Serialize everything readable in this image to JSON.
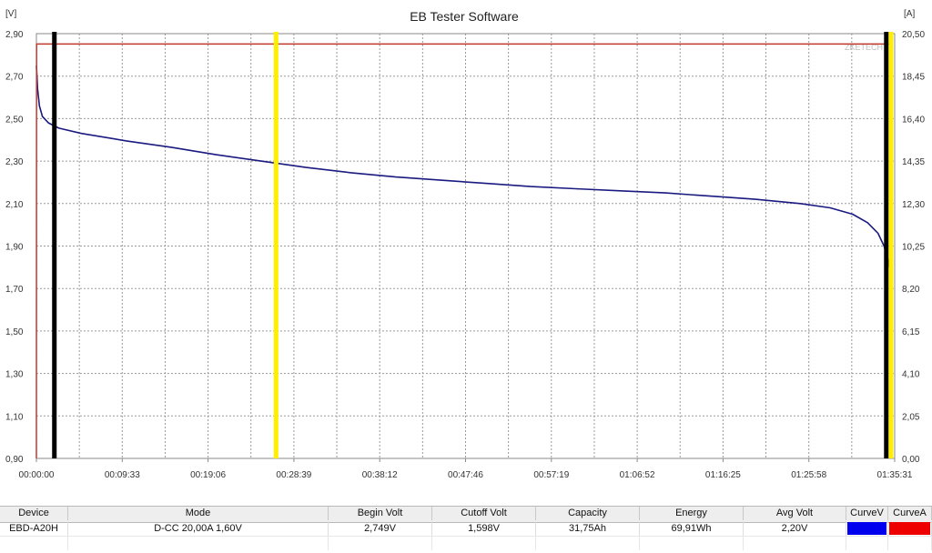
{
  "window": {
    "title": "EB Tester Software",
    "watermark": "ZKETECH"
  },
  "chart_data": {
    "type": "line",
    "title": "EB Tester Software",
    "y_left": {
      "unit": "[V]",
      "range": [
        0.9,
        2.9
      ],
      "ticks": [
        "2,90",
        "2,70",
        "2,50",
        "2,30",
        "2,10",
        "1,90",
        "1,70",
        "1,50",
        "1,30",
        "1,10",
        "0,90"
      ]
    },
    "y_right": {
      "unit": "[A]",
      "range": [
        0.0,
        20.5
      ],
      "ticks": [
        "20,50",
        "18,45",
        "16,40",
        "14,35",
        "12,30",
        "10,25",
        "8,20",
        "6,15",
        "4,10",
        "2,05",
        "0,00"
      ]
    },
    "x_axis": {
      "range_seconds": [
        0,
        5731
      ],
      "ticks": [
        "00:00:00",
        "00:09:33",
        "00:19:06",
        "00:28:39",
        "00:38:12",
        "00:47:46",
        "00:57:19",
        "01:06:52",
        "01:16:25",
        "01:25:58",
        "01:35:31"
      ]
    },
    "grid": true,
    "markers": [
      {
        "name": "cursor-black-left",
        "x_seconds": 120,
        "color": "#000000"
      },
      {
        "name": "cursor-yellow-left",
        "x_seconds": 1600,
        "color": "#ffee00"
      },
      {
        "name": "cursor-black-right",
        "x_seconds": 5675,
        "color": "#000000"
      },
      {
        "name": "cursor-yellow-right",
        "x_seconds": 5706,
        "color": "#ffee00"
      }
    ],
    "series": [
      {
        "name": "CurveV",
        "axis": "left",
        "color": "#1a1a80",
        "points": [
          [
            0,
            2.749
          ],
          [
            8,
            2.64
          ],
          [
            20,
            2.56
          ],
          [
            40,
            2.51
          ],
          [
            80,
            2.48
          ],
          [
            150,
            2.455
          ],
          [
            300,
            2.43
          ],
          [
            600,
            2.395
          ],
          [
            900,
            2.365
          ],
          [
            1200,
            2.33
          ],
          [
            1500,
            2.3
          ],
          [
            1800,
            2.27
          ],
          [
            2100,
            2.245
          ],
          [
            2400,
            2.225
          ],
          [
            2700,
            2.21
          ],
          [
            3000,
            2.195
          ],
          [
            3300,
            2.18
          ],
          [
            3600,
            2.17
          ],
          [
            3900,
            2.16
          ],
          [
            4200,
            2.15
          ],
          [
            4500,
            2.135
          ],
          [
            4800,
            2.12
          ],
          [
            5100,
            2.1
          ],
          [
            5300,
            2.08
          ],
          [
            5450,
            2.05
          ],
          [
            5550,
            2.01
          ],
          [
            5620,
            1.96
          ],
          [
            5660,
            1.9
          ],
          [
            5685,
            1.84
          ],
          [
            5700,
            1.78
          ],
          [
            5708,
            1.72
          ],
          [
            5712,
            1.598
          ]
        ]
      },
      {
        "name": "CurveA",
        "axis": "right",
        "color": "#c0392b",
        "points": [
          [
            0,
            0.0
          ],
          [
            1,
            20.0
          ],
          [
            5712,
            20.0
          ],
          [
            5713,
            0.0
          ]
        ]
      }
    ]
  },
  "status_table": {
    "headers": [
      "Device",
      "Mode",
      "Begin Volt",
      "Cutoff Volt",
      "Capacity",
      "Energy",
      "Avg Volt",
      "CurveV",
      "CurveA"
    ],
    "row": {
      "device": "EBD-A20H",
      "mode": "D-CC  20,00A  1,60V",
      "begin_volt": "2,749V",
      "cutoff_volt": "1,598V",
      "capacity": "31,75Ah",
      "energy": "69,91Wh",
      "avg_volt": "2,20V"
    },
    "curve_colors": {
      "curveV": "#0000ee",
      "curveA": "#ee0000"
    }
  }
}
